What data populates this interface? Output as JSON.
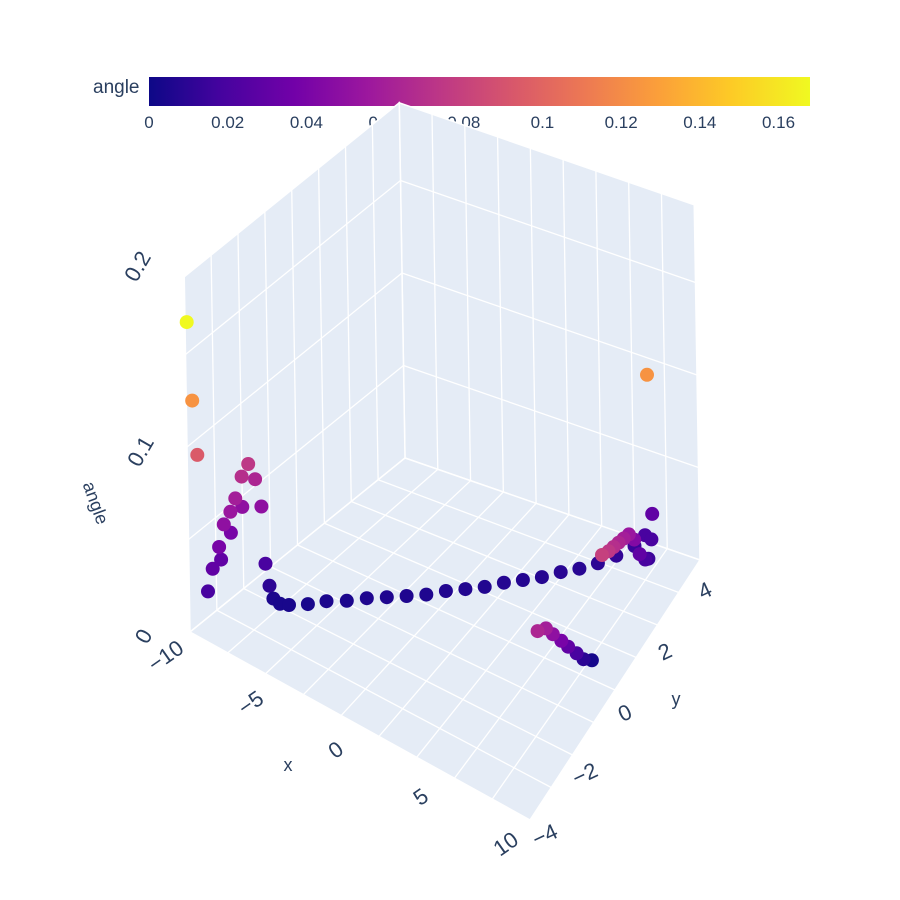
{
  "chart_data": {
    "type": "scatter3d",
    "axes": {
      "x": {
        "title": "x",
        "ticks": [
          "−10",
          "−5",
          "0",
          "5",
          "10"
        ],
        "range": [
          -10,
          10
        ]
      },
      "y": {
        "title": "y",
        "ticks": [
          "−4",
          "−2",
          "0",
          "2",
          "4"
        ],
        "range": [
          -4,
          4.5
        ]
      },
      "z": {
        "title": "angle",
        "ticks": [
          "0",
          "0.1",
          "0.2"
        ],
        "range": [
          0,
          0.2
        ]
      }
    },
    "colorbar": {
      "title": "angle",
      "colorscale": [
        "#0d0887",
        "#46039f",
        "#7201a8",
        "#9c179e",
        "#bd3786",
        "#d8576b",
        "#ed7953",
        "#fb9f3a",
        "#fdca26",
        "#f0f921"
      ],
      "ticks": [
        "0",
        "0.02",
        "0.04",
        "0.06",
        "0.08",
        "0.1",
        "0.12",
        "0.14",
        "0.16"
      ],
      "range": [
        0,
        0.168
      ]
    },
    "grid": true,
    "marker_color": "angle",
    "series": [
      {
        "points": [
          [
            -9.5,
            -3.6,
            0.02
          ],
          [
            -9.5,
            -3.4,
            0.03
          ],
          [
            -9.4,
            -3.2,
            0.04
          ],
          [
            -9.4,
            -3.0,
            0.05
          ],
          [
            -9.3,
            -2.8,
            0.055
          ],
          [
            -9.3,
            -2.6,
            0.06
          ],
          [
            -9.2,
            -2.4,
            0.07
          ],
          [
            -9.1,
            -2.2,
            0.075
          ],
          [
            -9.0,
            -2.0,
            0.065
          ],
          [
            -8.8,
            -1.9,
            0.05
          ],
          [
            -9.6,
            -3.0,
            0.03
          ],
          [
            -9.6,
            -2.6,
            0.04
          ],
          [
            -9.5,
            -2.2,
            0.05
          ],
          [
            -8.6,
            -1.9,
            0.02
          ],
          [
            -8.3,
            -1.95,
            0.01
          ],
          [
            -8.0,
            -2.0,
            0.005
          ],
          [
            -7.6,
            -2.0,
            0.004
          ],
          [
            -7.2,
            -1.9,
            0.004
          ],
          [
            -6.5,
            -1.6,
            0.004
          ],
          [
            -5.8,
            -1.3,
            0.005
          ],
          [
            -5.0,
            -1.0,
            0.005
          ],
          [
            -4.2,
            -0.7,
            0.006
          ],
          [
            -3.4,
            -0.4,
            0.006
          ],
          [
            -2.6,
            -0.1,
            0.006
          ],
          [
            -1.8,
            0.2,
            0.006
          ],
          [
            -1.0,
            0.5,
            0.007
          ],
          [
            -0.2,
            0.8,
            0.007
          ],
          [
            0.6,
            1.1,
            0.007
          ],
          [
            1.4,
            1.4,
            0.008
          ],
          [
            2.2,
            1.7,
            0.008
          ],
          [
            3.0,
            2.0,
            0.008
          ],
          [
            3.8,
            2.3,
            0.009
          ],
          [
            4.6,
            2.6,
            0.009
          ],
          [
            5.4,
            2.9,
            0.01
          ],
          [
            6.2,
            3.2,
            0.012
          ],
          [
            7.0,
            3.5,
            0.015
          ],
          [
            7.5,
            3.65,
            0.02
          ],
          [
            7.8,
            3.8,
            0.03
          ],
          [
            8.0,
            3.6,
            0.02
          ],
          [
            8.2,
            3.3,
            0.015
          ],
          [
            8.4,
            3.0,
            0.02
          ],
          [
            8.6,
            2.6,
            0.03
          ],
          [
            8.8,
            2.2,
            0.045
          ],
          [
            9.0,
            1.8,
            0.055
          ],
          [
            9.2,
            1.4,
            0.06
          ],
          [
            9.4,
            1.0,
            0.065
          ],
          [
            9.6,
            0.6,
            0.07
          ],
          [
            9.8,
            0.2,
            0.075
          ],
          [
            9.9,
            -0.2,
            0.08
          ],
          [
            8.1,
            0.6,
            0.003
          ],
          [
            8.1,
            0.2,
            0.01
          ],
          [
            8.2,
            -0.2,
            0.02
          ],
          [
            8.2,
            -0.6,
            0.03
          ],
          [
            8.3,
            -1.0,
            0.04
          ],
          [
            8.3,
            -1.4,
            0.05
          ],
          [
            8.4,
            -1.8,
            0.06
          ],
          [
            8.4,
            -2.2,
            0.065
          ],
          [
            -9.7,
            -3.8,
            0.095
          ],
          [
            9.0,
            2.8,
            0.125
          ],
          [
            -9.8,
            -3.9,
            0.125
          ],
          [
            -9.9,
            -4.0,
            0.168
          ]
        ]
      }
    ]
  }
}
